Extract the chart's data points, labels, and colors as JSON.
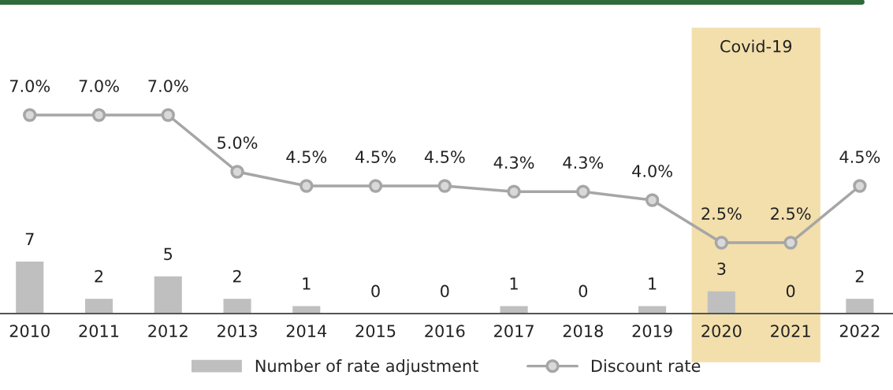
{
  "chart_data": [
    {
      "type": "bar",
      "categories": [
        "2010",
        "2011",
        "2012",
        "2013",
        "2014",
        "2015",
        "2016",
        "2017",
        "2018",
        "2019",
        "2020",
        "2021",
        "2022"
      ],
      "series": [
        {
          "name": "Number of rate adjustment",
          "color": "#bfbfbf",
          "values": [
            7,
            2,
            5,
            2,
            1,
            0,
            0,
            1,
            0,
            1,
            3,
            0,
            2
          ]
        }
      ],
      "data_labels": true,
      "bands": [
        {
          "axis": "x",
          "from": "2020",
          "to": "2021",
          "label": "Covid-19",
          "color": "#f2dfac"
        }
      ],
      "legend": "bottom"
    },
    {
      "type": "line",
      "categories": [
        "2010",
        "2011",
        "2012",
        "2013",
        "2014",
        "2015",
        "2016",
        "2017",
        "2018",
        "2019",
        "2020",
        "2021",
        "2022"
      ],
      "series": [
        {
          "name": "Discount rate",
          "color": "#a6a6a6",
          "marker": "circle",
          "values": [
            7.0,
            7.0,
            7.0,
            5.0,
            4.5,
            4.5,
            4.5,
            4.3,
            4.3,
            4.0,
            2.5,
            2.5,
            4.5
          ],
          "value_labels": [
            "7.0%",
            "7.0%",
            "7.0%",
            "5.0%",
            "4.5%",
            "4.5%",
            "4.5%",
            "4.3%",
            "4.3%",
            "4.0%",
            "2.5%",
            "2.5%",
            "4.5%"
          ]
        }
      ],
      "data_labels": true,
      "tick_labels": false,
      "legend": "bottom"
    }
  ]
}
